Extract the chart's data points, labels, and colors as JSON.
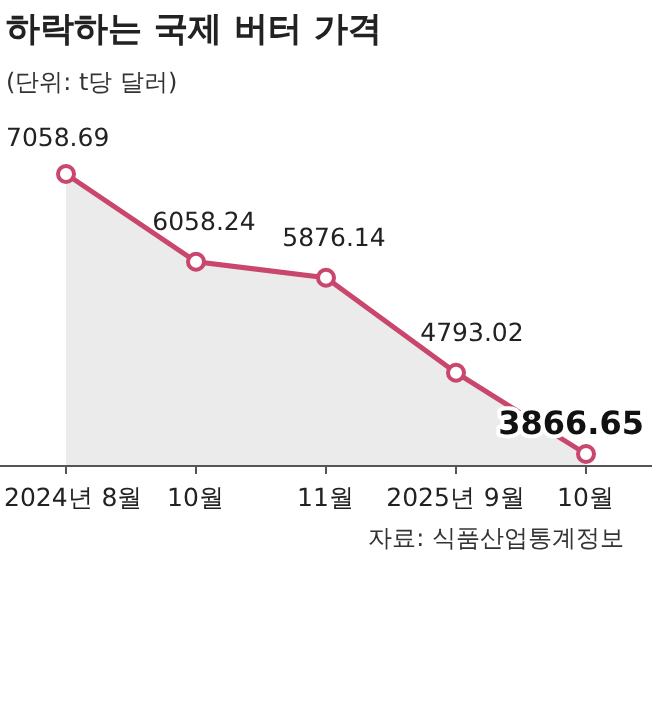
{
  "chart_data": {
    "type": "area",
    "title": "하락하는 국제 버터 가격",
    "subtitle": "(단위: t당 달러)",
    "annotations": [
      "자료: 식품산업통계정보"
    ],
    "categories": [
      "2024년 8월",
      "10월",
      "11월",
      "2025년 9월",
      "10월"
    ],
    "series": [
      {
        "color": "#c9466d",
        "values": [
          7058.69,
          6058.24,
          5876.14,
          4793.02,
          3866.65
        ]
      }
    ],
    "data_labels": true,
    "marker": "circle"
  }
}
